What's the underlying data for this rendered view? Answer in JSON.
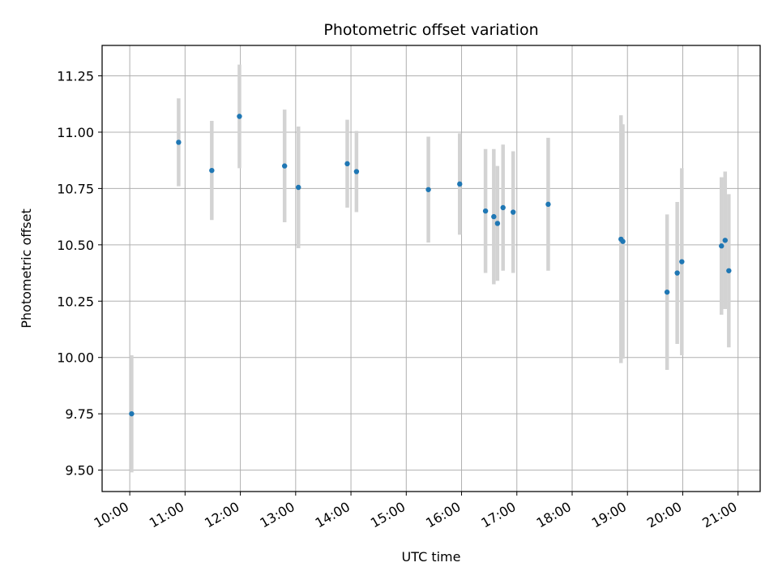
{
  "chart_data": {
    "type": "scatter",
    "title": "Photometric offset variation",
    "xlabel": "UTC time",
    "ylabel": "Photometric offset",
    "x_tick_labels": [
      "10:00",
      "11:00",
      "12:00",
      "13:00",
      "14:00",
      "15:00",
      "16:00",
      "17:00",
      "18:00",
      "19:00",
      "20:00",
      "21:00"
    ],
    "y_tick_labels": [
      "9.50",
      "9.75",
      "10.00",
      "10.25",
      "10.50",
      "10.75",
      "11.00",
      "11.25"
    ],
    "y_ticks": [
      9.5,
      9.75,
      10.0,
      10.25,
      10.5,
      10.75,
      11.0,
      11.25
    ],
    "xlim": [
      "09:30",
      "21:24"
    ],
    "ylim": [
      9.405,
      11.385
    ],
    "grid": true,
    "marker_color": "#1f77b4",
    "errorbar_color": "#d3d3d3",
    "series": [
      {
        "points": [
          {
            "x": "10:02",
            "y": 9.75,
            "err": 0.26
          },
          {
            "x": "10:53",
            "y": 10.955,
            "err": 0.195
          },
          {
            "x": "11:29",
            "y": 10.83,
            "err": 0.22
          },
          {
            "x": "11:59",
            "y": 11.07,
            "err": 0.23
          },
          {
            "x": "12:48",
            "y": 10.85,
            "err": 0.25
          },
          {
            "x": "13:03",
            "y": 10.755,
            "err": 0.27
          },
          {
            "x": "13:56",
            "y": 10.86,
            "err": 0.195
          },
          {
            "x": "14:06",
            "y": 10.825,
            "err": 0.18
          },
          {
            "x": "15:24",
            "y": 10.745,
            "err": 0.235
          },
          {
            "x": "15:58",
            "y": 10.77,
            "err": 0.225
          },
          {
            "x": "16:26",
            "y": 10.65,
            "err": 0.275
          },
          {
            "x": "16:35",
            "y": 10.625,
            "err": 0.3
          },
          {
            "x": "16:39",
            "y": 10.595,
            "err": 0.255
          },
          {
            "x": "16:45",
            "y": 10.665,
            "err": 0.28
          },
          {
            "x": "16:56",
            "y": 10.645,
            "err": 0.27
          },
          {
            "x": "17:34",
            "y": 10.68,
            "err": 0.295
          },
          {
            "x": "18:53",
            "y": 10.525,
            "err": 0.55
          },
          {
            "x": "18:55",
            "y": 10.515,
            "err": 0.52
          },
          {
            "x": "19:43",
            "y": 10.29,
            "err": 0.345
          },
          {
            "x": "19:54",
            "y": 10.375,
            "err": 0.315
          },
          {
            "x": "19:59",
            "y": 10.425,
            "err": 0.415
          },
          {
            "x": "20:42",
            "y": 10.495,
            "err": 0.305
          },
          {
            "x": "20:46",
            "y": 10.52,
            "err": 0.305
          },
          {
            "x": "20:50",
            "y": 10.385,
            "err": 0.34
          }
        ]
      }
    ]
  }
}
